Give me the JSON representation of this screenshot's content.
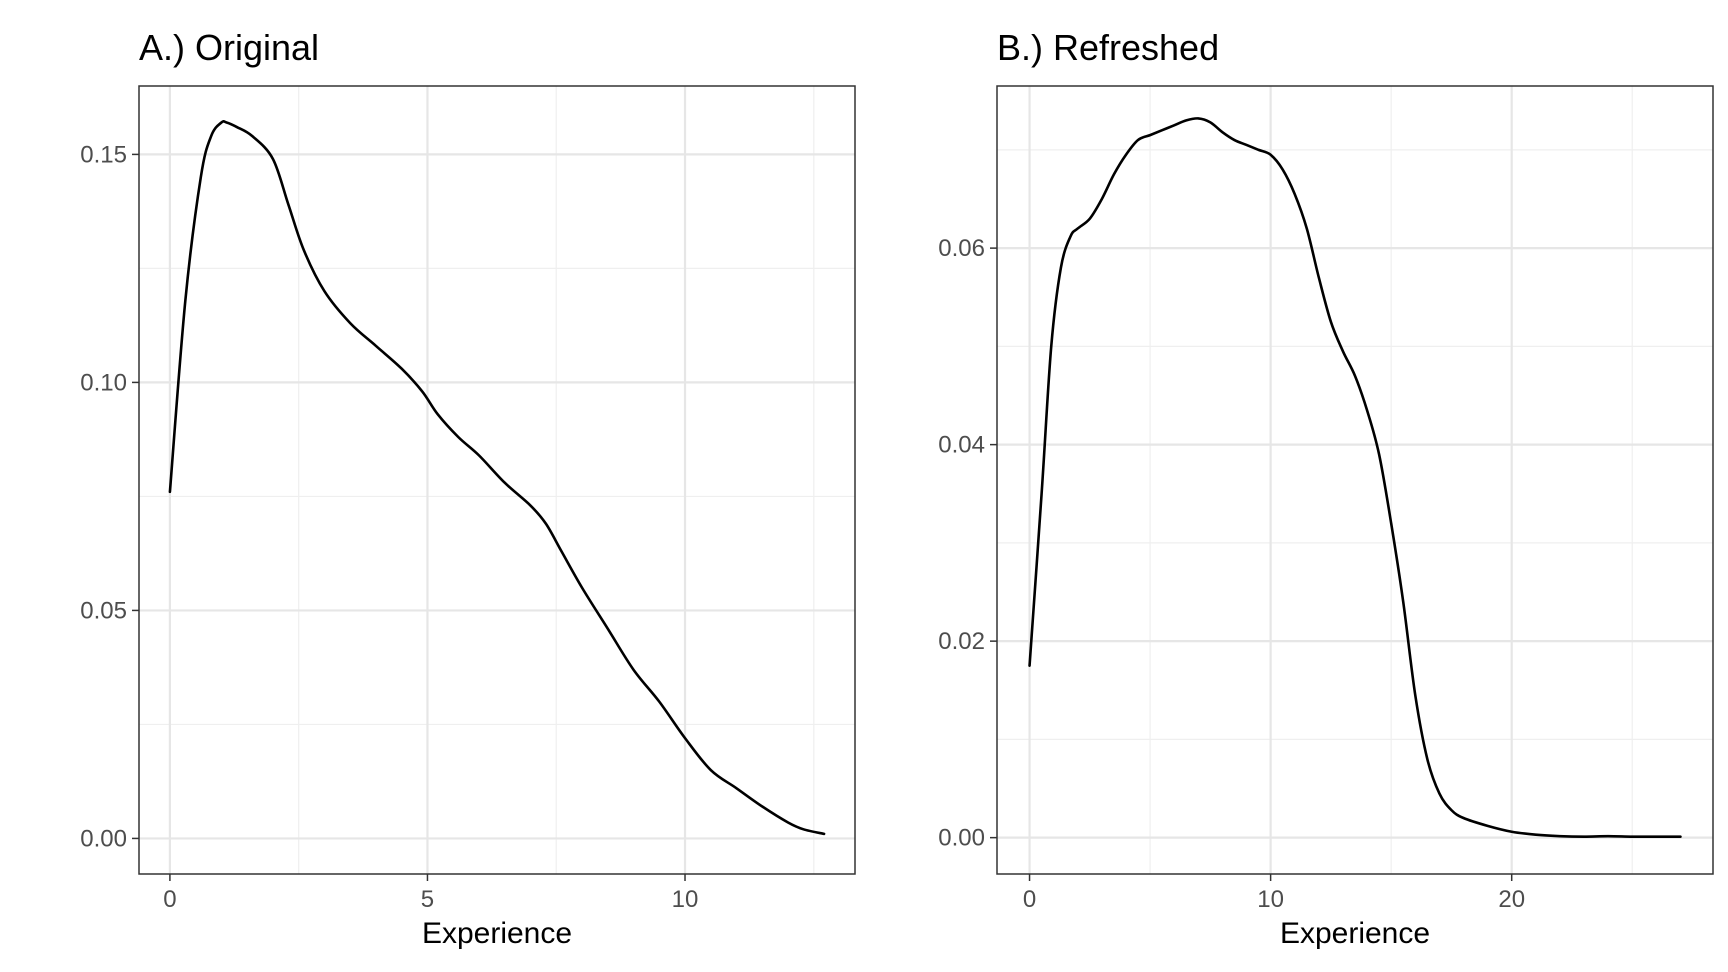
{
  "chart_data": [
    {
      "type": "line",
      "title": "A.) Original",
      "xlabel": "Experience",
      "ylabel": "",
      "xlim": [
        -0.6,
        13.3
      ],
      "ylim": [
        -0.0078,
        0.165
      ],
      "x_ticks": [
        0,
        5,
        10
      ],
      "x_tick_labels": [
        "0",
        "5",
        "10"
      ],
      "y_ticks": [
        0.0,
        0.05,
        0.1,
        0.15
      ],
      "y_tick_labels": [
        "0.00",
        "0.05",
        "0.10",
        "0.15"
      ],
      "grid": true,
      "series": [
        {
          "x": [
            0,
            0.3,
            0.6,
            0.8,
            1.0,
            1.1,
            1.3,
            1.6,
            2.0,
            2.3,
            2.6,
            3.0,
            3.5,
            4.0,
            4.5,
            4.9,
            5.2,
            5.6,
            6.0,
            6.5,
            7.0,
            7.3,
            7.6,
            8.0,
            8.5,
            9.0,
            9.5,
            10.0,
            10.5,
            11.0,
            11.5,
            12.0,
            12.3,
            12.7
          ],
          "y": [
            0.076,
            0.118,
            0.145,
            0.154,
            0.157,
            0.157,
            0.156,
            0.154,
            0.149,
            0.139,
            0.129,
            0.12,
            0.113,
            0.108,
            0.103,
            0.098,
            0.093,
            0.088,
            0.084,
            0.078,
            0.073,
            0.069,
            0.063,
            0.055,
            0.046,
            0.037,
            0.03,
            0.022,
            0.015,
            0.011,
            0.007,
            0.0035,
            0.002,
            0.001
          ]
        }
      ]
    },
    {
      "type": "line",
      "title": "B.) Refreshed",
      "xlabel": "Experience",
      "ylabel": "",
      "xlim": [
        -1.35,
        28.35
      ],
      "ylim": [
        -0.0037,
        0.0765
      ],
      "x_ticks": [
        0,
        10,
        20
      ],
      "x_tick_labels": [
        "0",
        "10",
        "20"
      ],
      "y_ticks": [
        0.0,
        0.02,
        0.04,
        0.06
      ],
      "y_tick_labels": [
        "0.00",
        "0.02",
        "0.04",
        "0.06"
      ],
      "grid": true,
      "series": [
        {
          "x": [
            0,
            0.5,
            0.9,
            1.3,
            1.7,
            2.0,
            2.5,
            3.0,
            3.5,
            4.0,
            4.5,
            5.0,
            5.5,
            6.0,
            6.5,
            7.0,
            7.5,
            8.0,
            8.5,
            9.0,
            9.5,
            10.0,
            10.5,
            11.0,
            11.5,
            12.0,
            12.5,
            13.0,
            13.5,
            14.0,
            14.5,
            15.0,
            15.5,
            16.0,
            16.5,
            17.0,
            17.5,
            18.0,
            19.0,
            20.0,
            21.0,
            22.0,
            23.0,
            24.0,
            25.0,
            26.0,
            27.0
          ],
          "y": [
            0.0175,
            0.035,
            0.05,
            0.058,
            0.0612,
            0.062,
            0.063,
            0.065,
            0.0675,
            0.0695,
            0.071,
            0.0715,
            0.072,
            0.0725,
            0.073,
            0.0732,
            0.0728,
            0.0718,
            0.071,
            0.0705,
            0.07,
            0.0695,
            0.068,
            0.0655,
            0.062,
            0.057,
            0.0525,
            0.0495,
            0.047,
            0.0435,
            0.039,
            0.032,
            0.024,
            0.0145,
            0.008,
            0.0045,
            0.0028,
            0.002,
            0.0012,
            0.0006,
            0.0003,
            0.00015,
            0.0001,
            0.00015,
            0.0001,
            0.0001,
            0.0001
          ]
        }
      ]
    }
  ]
}
